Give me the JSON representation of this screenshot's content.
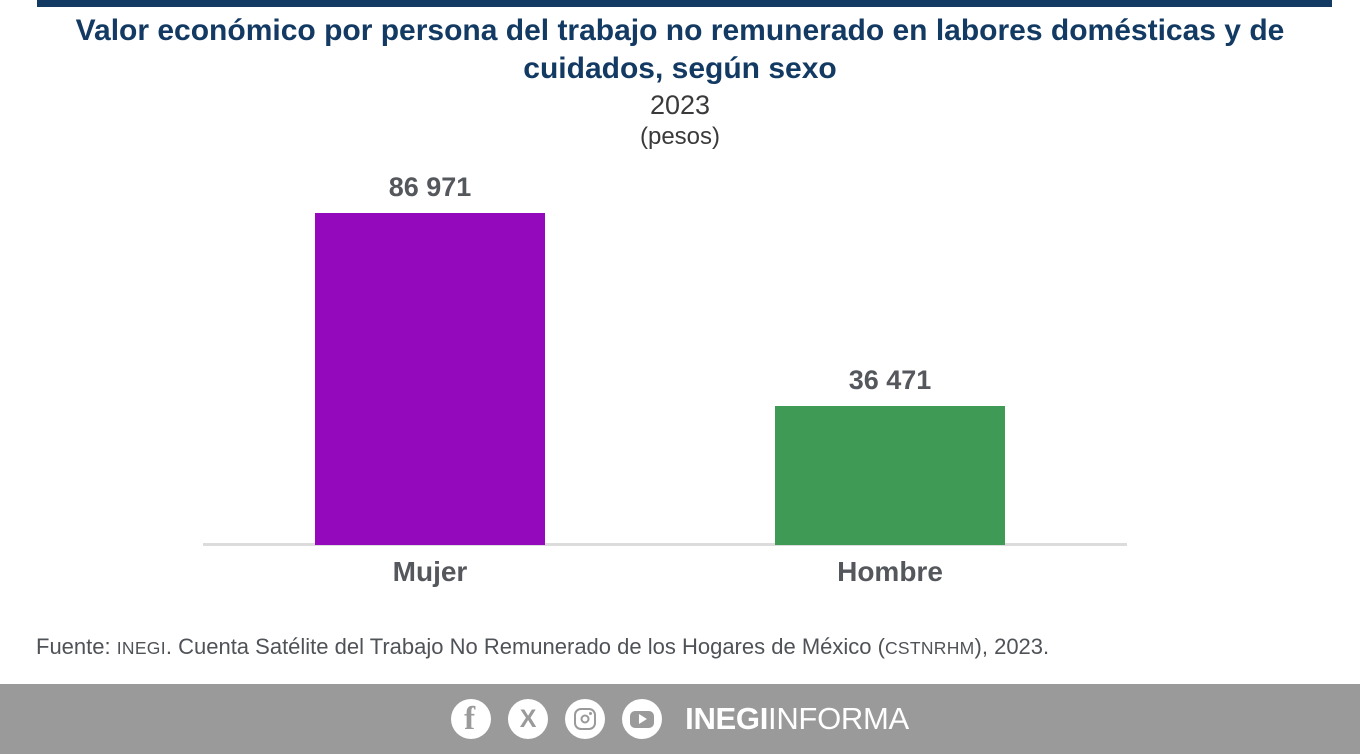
{
  "header": {
    "title": "Valor económico por persona del trabajo no remunerado en labores domésticas y de cuidados, según sexo",
    "year": "2023",
    "units": "(pesos)"
  },
  "chart_data": {
    "type": "bar",
    "categories": [
      "Mujer",
      "Hombre"
    ],
    "values": [
      86971,
      36471
    ],
    "value_labels": [
      "86 971",
      "36 471"
    ],
    "series": [
      {
        "name": "Valor económico por persona (pesos)",
        "values": [
          86971,
          36471
        ]
      }
    ],
    "title": "Valor económico por persona del trabajo no remunerado en labores domésticas y de cuidados, según sexo",
    "subtitle": "2023",
    "units_label": "(pesos)",
    "xlabel": "",
    "ylabel": "",
    "ylim": [
      0,
      86971
    ],
    "grid": false,
    "legend": false,
    "bar_colors": [
      "#9309BB",
      "#3F9A56"
    ],
    "baseline_color": "#DCDCDC"
  },
  "source": {
    "prefix": "Fuente: ",
    "org": "INEGI",
    "middle": ". Cuenta Satélite del Trabajo No Remunerado de los Hogares de México (",
    "acronym": "CSTNRHM",
    "suffix": "), 2023."
  },
  "footer": {
    "background": "#9A9A9A",
    "icons": [
      "facebook-icon",
      "x-icon",
      "instagram-icon",
      "youtube-icon"
    ],
    "x_glyph": "X",
    "facebook_glyph": "f",
    "brand_bold": "INEGI",
    "brand_regular": "INFORMA"
  },
  "colors": {
    "title_navy": "#133A63",
    "subtitle_text": "#3A3A3C",
    "label_gray": "#54575C",
    "source_gray": "#4F5357",
    "bar_mujer_purple": "#9309BB",
    "bar_hombre_green": "#3F9A56",
    "footer_gray": "#9A9A9A"
  }
}
